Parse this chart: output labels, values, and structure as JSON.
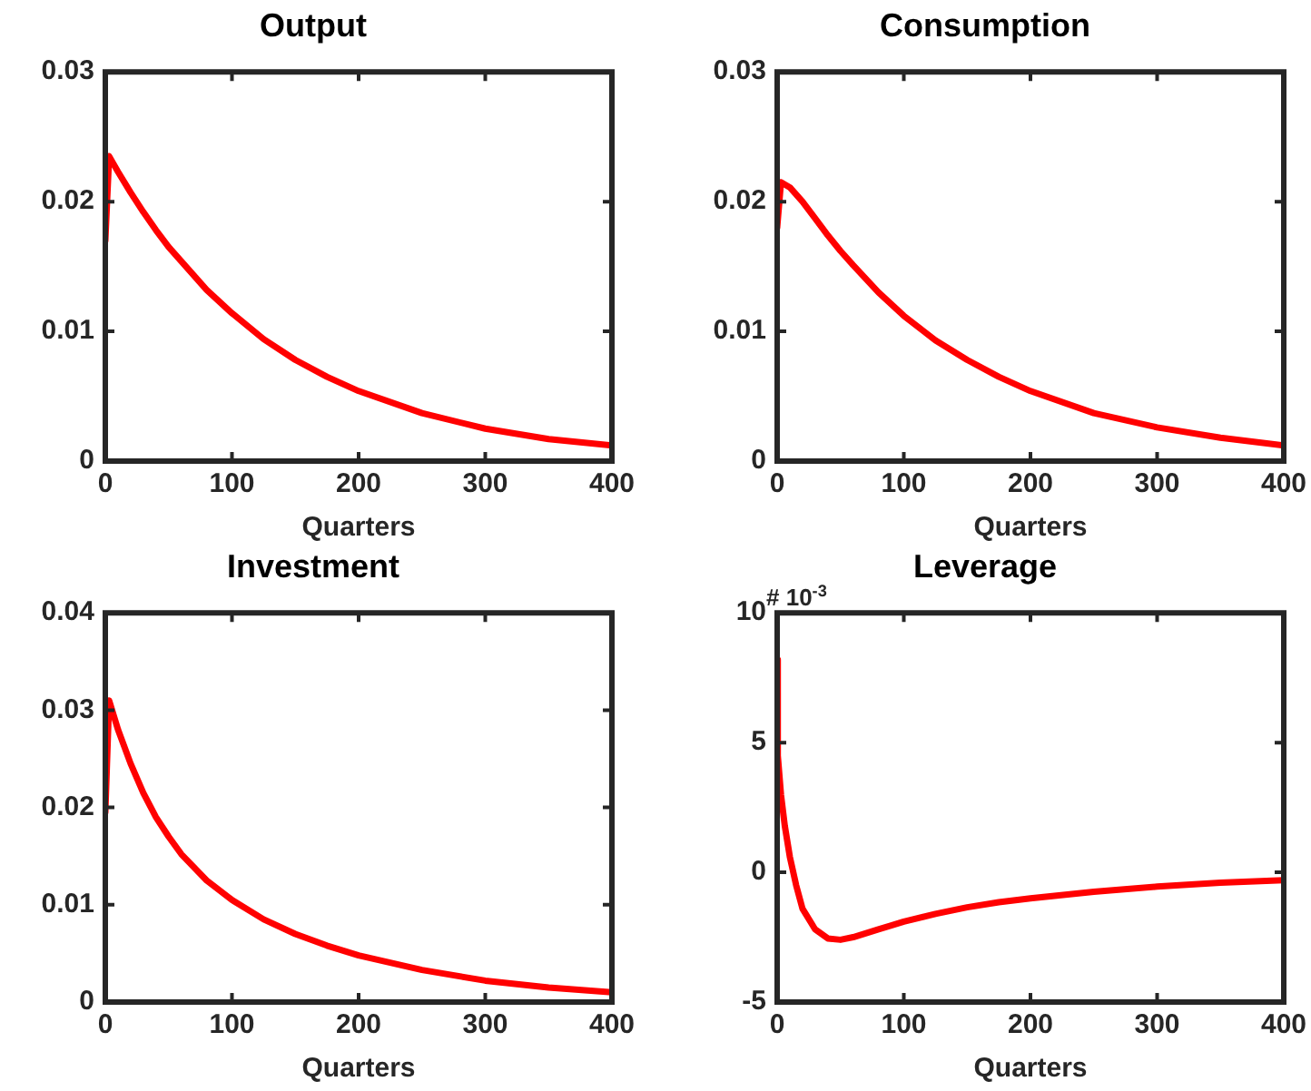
{
  "chart_data": [
    {
      "type": "line",
      "title": "Output",
      "xlabel": "Quarters",
      "xlim": [
        0,
        400
      ],
      "xticks": [
        0,
        100,
        200,
        300,
        400
      ],
      "ylim": [
        0,
        0.03
      ],
      "yticks": [
        0,
        0.01,
        0.02,
        0.03
      ],
      "grid": false,
      "legend": false,
      "marker": "none",
      "line_style": "solid",
      "x": [
        0,
        3,
        10,
        20,
        30,
        40,
        50,
        60,
        80,
        100,
        125,
        150,
        175,
        200,
        250,
        300,
        350,
        400
      ],
      "series": [
        {
          "color": "#ff0000",
          "values": [
            0.017,
            0.0235,
            0.0223,
            0.0207,
            0.0192,
            0.0178,
            0.0165,
            0.0154,
            0.0132,
            0.0114,
            0.0094,
            0.0078,
            0.0065,
            0.0054,
            0.0037,
            0.0025,
            0.0017,
            0.0012
          ]
        }
      ]
    },
    {
      "type": "line",
      "title": "Consumption",
      "xlabel": "Quarters",
      "xlim": [
        0,
        400
      ],
      "xticks": [
        0,
        100,
        200,
        300,
        400
      ],
      "ylim": [
        0,
        0.03
      ],
      "yticks": [
        0,
        0.01,
        0.02,
        0.03
      ],
      "grid": false,
      "legend": false,
      "marker": "none",
      "line_style": "solid",
      "x": [
        0,
        3,
        10,
        20,
        30,
        40,
        50,
        60,
        80,
        100,
        125,
        150,
        175,
        200,
        250,
        300,
        350,
        400
      ],
      "series": [
        {
          "color": "#ff0000",
          "values": [
            0.018,
            0.0215,
            0.0211,
            0.02,
            0.0187,
            0.0174,
            0.0162,
            0.0151,
            0.013,
            0.0112,
            0.0093,
            0.0078,
            0.0065,
            0.0054,
            0.0037,
            0.0026,
            0.0018,
            0.0012
          ]
        }
      ]
    },
    {
      "type": "line",
      "title": "Investment",
      "xlabel": "Quarters",
      "xlim": [
        0,
        400
      ],
      "xticks": [
        0,
        100,
        200,
        300,
        400
      ],
      "ylim": [
        0,
        0.04
      ],
      "yticks": [
        0,
        0.01,
        0.02,
        0.03,
        0.04
      ],
      "grid": false,
      "legend": false,
      "marker": "none",
      "line_style": "solid",
      "x": [
        0,
        3,
        10,
        20,
        30,
        40,
        50,
        60,
        80,
        100,
        125,
        150,
        175,
        200,
        250,
        300,
        350,
        400
      ],
      "series": [
        {
          "color": "#ff0000",
          "values": [
            0.0195,
            0.031,
            0.028,
            0.0245,
            0.0215,
            0.019,
            0.017,
            0.0152,
            0.0125,
            0.0105,
            0.0085,
            0.007,
            0.0058,
            0.0048,
            0.0033,
            0.0022,
            0.0015,
            0.001
          ]
        }
      ]
    },
    {
      "type": "line",
      "title": "Leverage",
      "xlabel": "Quarters",
      "xlim": [
        0,
        400
      ],
      "xticks": [
        0,
        100,
        200,
        300,
        400
      ],
      "ylim": [
        -5,
        10
      ],
      "yticks": [
        -5,
        0,
        5,
        10
      ],
      "grid": false,
      "legend": false,
      "marker": "none",
      "line_style": "solid",
      "annotations": [
        "# 10$^{-3}$"
      ],
      "x": [
        0,
        0.5,
        3,
        6,
        10,
        15,
        20,
        30,
        40,
        50,
        60,
        80,
        100,
        125,
        150,
        175,
        200,
        250,
        300,
        350,
        400
      ],
      "series": [
        {
          "color": "#ff0000",
          "values": [
            8.2,
            4.5,
            3,
            1.8,
            0.6,
            -0.5,
            -1.4,
            -2.2,
            -2.55,
            -2.6,
            -2.5,
            -2.2,
            -1.9,
            -1.6,
            -1.35,
            -1.15,
            -1,
            -0.75,
            -0.55,
            -0.4,
            -0.3
          ]
        }
      ]
    }
  ]
}
